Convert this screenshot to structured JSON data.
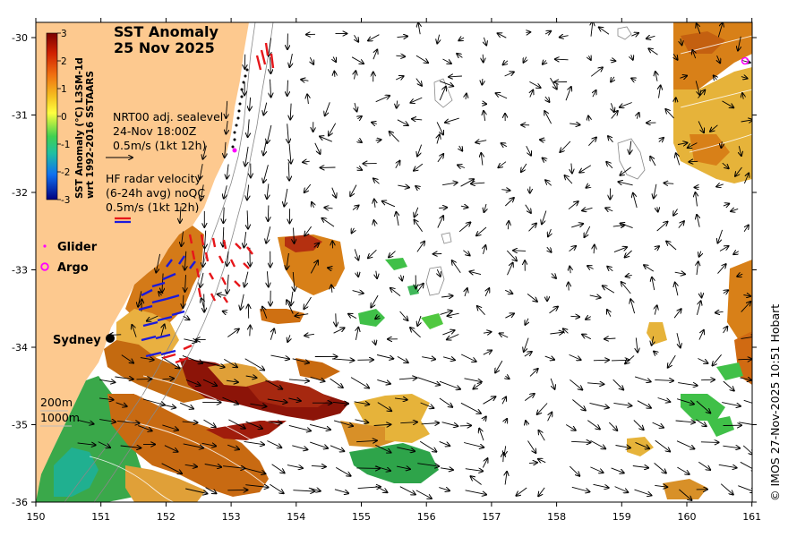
{
  "title": "SST Anomaly",
  "date": "25 Nov 2025",
  "sealevel": {
    "line1": "NRT00 adj. sealevel",
    "line2": "24-Nov 18:00Z",
    "line3": "0.5m/s (1kt 12h)"
  },
  "hfradar": {
    "line1": "HF radar velocity",
    "line2": "(6-24h avg) noQC",
    "line3": "0.5m/s (1kt 12h)"
  },
  "legend": {
    "glider": "Glider",
    "argo": "Argo"
  },
  "city": "Sydney",
  "depth": {
    "d200": "200m",
    "d1000": "1000m"
  },
  "colorbar": {
    "title1": "SST Anomaly (°C) L3SM-1d",
    "title2": "wrt 1992-2016 SSTAARS",
    "ticks": [
      "3",
      "2",
      "1",
      "0",
      "-1",
      "-2",
      "-3"
    ]
  },
  "copyright": "© IMOS 27-Nov-2025 10:51 Hobart",
  "axes": {
    "lon_ticks": [
      "150",
      "151",
      "152",
      "153",
      "154",
      "155",
      "156",
      "157",
      "158",
      "159",
      "160",
      "161"
    ],
    "lat_ticks": [
      "-30",
      "-31",
      "-32",
      "-33",
      "-34",
      "-35",
      "-36"
    ]
  },
  "colors": {
    "land": "#fdc98f",
    "glider": "#ff00ff",
    "argo": "#ff00ff",
    "hf_red": "#e6161a",
    "hf_blue": "#1a1adc"
  }
}
